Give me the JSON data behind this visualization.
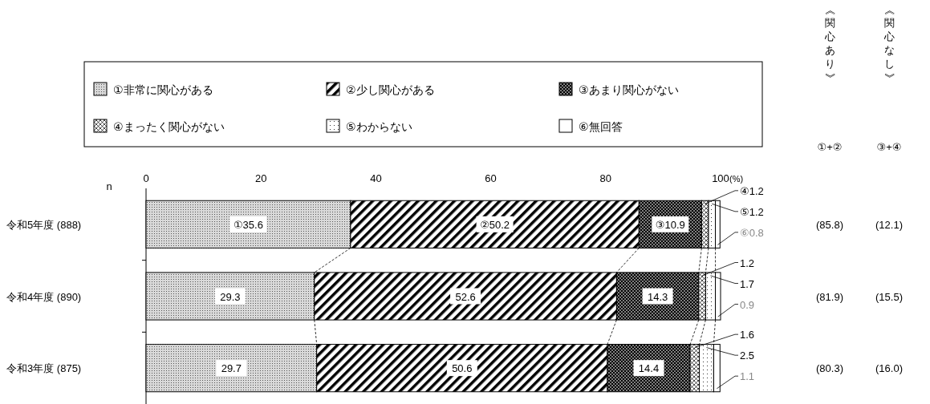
{
  "chart_data": {
    "type": "bar",
    "orientation": "horizontal",
    "stacked": true,
    "legend": "top",
    "ylabel": "n",
    "xlabel": "(%)",
    "categories": [
      "令和5年度 (888)",
      "令和4年度 (890)",
      "令和3年度 (875)"
    ],
    "xlim": [
      0,
      100
    ],
    "xticks": [
      0,
      20,
      40,
      60,
      80,
      100
    ],
    "series": [
      {
        "name": "①非常に関心がある",
        "color": "#d9d9d9",
        "values": [
          35.6,
          29.3,
          29.7
        ],
        "value_labels": [
          "①35.6",
          "29.3",
          "29.7"
        ]
      },
      {
        "name": "②少し関心がある",
        "color": "#ffffff",
        "values": [
          50.2,
          52.6,
          50.6
        ],
        "value_labels": [
          "②50.2",
          "52.6",
          "50.6"
        ]
      },
      {
        "name": "③あまり関心がない",
        "color": "#7f7f7f",
        "values": [
          10.9,
          14.3,
          14.4
        ],
        "value_labels": [
          "③10.9",
          "14.3",
          "14.4"
        ]
      },
      {
        "name": "④まったく関心がない",
        "color": "#ffffff",
        "values": [
          1.2,
          1.2,
          1.6
        ],
        "value_labels": [
          "④1.2",
          "1.2",
          "1.6"
        ]
      },
      {
        "name": "⑤わからない",
        "color": "#ffffff",
        "values": [
          1.2,
          1.7,
          2.5
        ],
        "value_labels": [
          "⑤1.2",
          "1.7",
          "2.5"
        ]
      },
      {
        "name": "⑥無回答",
        "color": "#ffffff",
        "values": [
          0.8,
          0.9,
          1.1
        ],
        "value_labels": [
          "⑥0.8",
          "0.9",
          "1.1"
        ]
      }
    ],
    "annotations": [
      "《関心あり》",
      "《関心なし》",
      "①+②",
      "③+④",
      "(85.8)",
      "(12.1)",
      "(81.9)",
      "(15.5)",
      "(80.3)",
      "(16.0)"
    ]
  }
}
